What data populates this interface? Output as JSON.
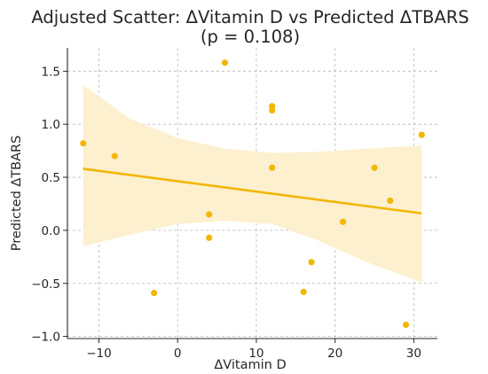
{
  "chart_data": {
    "type": "scatter",
    "title": "Adjusted Scatter: ΔVitamin D vs Predicted ΔTBARS",
    "subtitle": "(p = 0.108)",
    "xlabel": "ΔVitamin D",
    "ylabel": "Predicted ΔTBARS",
    "xlim": [
      -14.0,
      33.0
    ],
    "ylim": [
      -1.02,
      1.72
    ],
    "xticks": [
      -10,
      0,
      10,
      20,
      30
    ],
    "xtick_labels": [
      "−10",
      "0",
      "10",
      "20",
      "30"
    ],
    "yticks": [
      -1.0,
      -0.5,
      0.0,
      0.5,
      1.0,
      1.5
    ],
    "ytick_labels": [
      "−1.0",
      "−0.5",
      "0.0",
      "0.5",
      "1.0",
      "1.5"
    ],
    "grid": true,
    "colors": {
      "points": "#f2b705",
      "line": "#f2b705",
      "band": "#fdf0cf"
    },
    "points": [
      {
        "x": -12,
        "y": 0.82
      },
      {
        "x": -8,
        "y": 0.7
      },
      {
        "x": -3,
        "y": -0.59
      },
      {
        "x": 4,
        "y": 0.15
      },
      {
        "x": 4,
        "y": -0.07
      },
      {
        "x": 6,
        "y": 1.58
      },
      {
        "x": 12,
        "y": 1.17
      },
      {
        "x": 12,
        "y": 1.13
      },
      {
        "x": 12,
        "y": 0.59
      },
      {
        "x": 16,
        "y": -0.58
      },
      {
        "x": 17,
        "y": -0.3
      },
      {
        "x": 21,
        "y": 0.08
      },
      {
        "x": 25,
        "y": 0.59
      },
      {
        "x": 27,
        "y": 0.28
      },
      {
        "x": 29,
        "y": -0.89
      },
      {
        "x": 31,
        "y": 0.9
      }
    ],
    "regression_line": {
      "x": [
        -12,
        31
      ],
      "y": [
        0.58,
        0.16
      ]
    },
    "confidence_band": {
      "x": [
        -12,
        -6,
        0,
        6,
        12,
        18,
        24,
        31
      ],
      "upper": [
        1.37,
        1.05,
        0.87,
        0.77,
        0.73,
        0.74,
        0.77,
        0.8
      ],
      "lower": [
        -0.15,
        -0.04,
        0.06,
        0.09,
        0.06,
        -0.1,
        -0.3,
        -0.49
      ]
    }
  }
}
